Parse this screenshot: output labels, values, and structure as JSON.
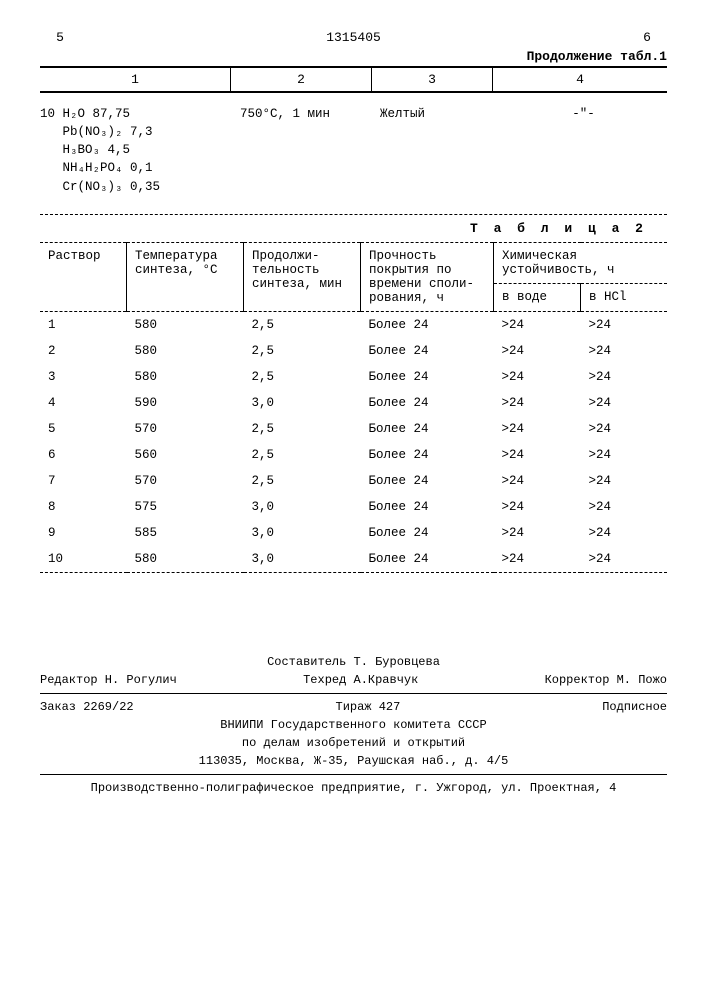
{
  "header": {
    "left_num": "5",
    "doc_num": "1315405",
    "right_num": "6"
  },
  "cont_label": "Продолжение табл.1",
  "upper_cols": [
    "1",
    "2",
    "3",
    "4"
  ],
  "compound": {
    "row_num": "10",
    "lines": [
      "H₂O  87,75",
      "Pb(NO₃)₂  7,3",
      "H₃BO₃  4,5",
      "NH₄H₂PO₄  0,1",
      "Cr(NO₃)₃  0,35"
    ],
    "temp": "750°C, 1 мин",
    "color": "Желтый",
    "last": "-\"-"
  },
  "table2": {
    "label": "Т а б л и ц а  2",
    "headers": {
      "r": "Раствор",
      "t": "Температура синтеза, °C",
      "d": "Продолжи-тельность синтеза, мин",
      "p": "Прочность покрытия по времени споли-рования, ч",
      "chem": "Химическая устойчивость, ч",
      "water": "в воде",
      "hcl": "в HCl"
    },
    "rows": [
      {
        "n": "1",
        "t": "580",
        "d": "2,5",
        "p": "Более 24",
        "w": ">24",
        "h": ">24"
      },
      {
        "n": "2",
        "t": "580",
        "d": "2,5",
        "p": "Более 24",
        "w": ">24",
        "h": ">24"
      },
      {
        "n": "3",
        "t": "580",
        "d": "2,5",
        "p": "Более 24",
        "w": ">24",
        "h": ">24"
      },
      {
        "n": "4",
        "t": "590",
        "d": "3,0",
        "p": "Более 24",
        "w": ">24",
        "h": ">24"
      },
      {
        "n": "5",
        "t": "570",
        "d": "2,5",
        "p": "Более 24",
        "w": ">24",
        "h": ">24"
      },
      {
        "n": "6",
        "t": "560",
        "d": "2,5",
        "p": "Более 24",
        "w": ">24",
        "h": ">24"
      },
      {
        "n": "7",
        "t": "570",
        "d": "2,5",
        "p": "Более 24",
        "w": ">24",
        "h": ">24"
      },
      {
        "n": "8",
        "t": "575",
        "d": "3,0",
        "p": "Более 24",
        "w": ">24",
        "h": ">24"
      },
      {
        "n": "9",
        "t": "585",
        "d": "3,0",
        "p": "Более 24",
        "w": ">24",
        "h": ">24"
      },
      {
        "n": "10",
        "t": "580",
        "d": "3,0",
        "p": "Более 24",
        "w": ">24",
        "h": ">24"
      }
    ]
  },
  "footer": {
    "compiler": "Составитель Т. Буровцева",
    "editor": "Редактор Н. Рогулич",
    "tech": "Техред А.Кравчук",
    "corr": "Корректор М. Пожо",
    "order": "Заказ 2269/22",
    "tirage": "Тираж  427",
    "sign": "Подписное",
    "org1": "ВНИИПИ Государственного комитета СССР",
    "org2": "по делам изобретений и открытий",
    "addr": "113035, Москва, Ж-35, Раушская наб., д. 4/5",
    "print": "Производственно-полиграфическое предприятие, г. Ужгород, ул. Проектная, 4"
  }
}
